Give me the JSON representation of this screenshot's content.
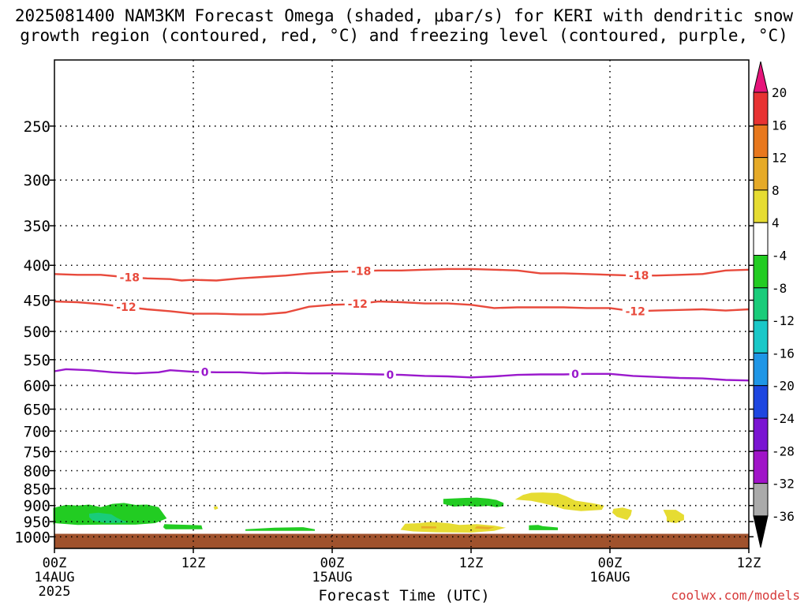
{
  "title_line1": "2025081400 NAM3KM Forecast Omega (shaded, μbar/s) for KERI with dendritic snow",
  "title_line2": "growth region (contoured, red, °C) and freezing level (contoured, purple, °C)",
  "watermark": "coolwx.com/models",
  "chart_data": {
    "type": "contour",
    "xlabel": "Forecast Time (UTC)",
    "x_ticks": [
      {
        "hours": 0,
        "label": "00Z",
        "sub1": "14AUG",
        "sub2": "2025"
      },
      {
        "hours": 12,
        "label": "12Z",
        "sub1": "",
        "sub2": ""
      },
      {
        "hours": 24,
        "label": "00Z",
        "sub1": "15AUG",
        "sub2": ""
      },
      {
        "hours": 36,
        "label": "12Z",
        "sub1": "",
        "sub2": ""
      },
      {
        "hours": 48,
        "label": "00Z",
        "sub1": "16AUG",
        "sub2": ""
      },
      {
        "hours": 60,
        "label": "12Z",
        "sub1": "",
        "sub2": ""
      }
    ],
    "x_range_hours": [
      0,
      60
    ],
    "y_axis": "pressure (hPa), inverted",
    "y_range": [
      1040,
      200
    ],
    "y_ticks": [
      250,
      300,
      350,
      400,
      450,
      500,
      550,
      600,
      650,
      700,
      750,
      800,
      850,
      900,
      950,
      1000
    ],
    "ground_pressure": 990,
    "ground_color": "#a0522d",
    "contours": [
      {
        "name": "-18",
        "color": "#e84a3c",
        "kind": "dgz",
        "points": [
          [
            0,
            412
          ],
          [
            2,
            413
          ],
          [
            4,
            413
          ],
          [
            6,
            416
          ],
          [
            8,
            418
          ],
          [
            10,
            419
          ],
          [
            11,
            421
          ],
          [
            12,
            420
          ],
          [
            14,
            421
          ],
          [
            16,
            418
          ],
          [
            18,
            416
          ],
          [
            20,
            414
          ],
          [
            22,
            411
          ],
          [
            24,
            409
          ],
          [
            26,
            408
          ],
          [
            28,
            407
          ],
          [
            30,
            407
          ],
          [
            32,
            406
          ],
          [
            34,
            405
          ],
          [
            36,
            405
          ],
          [
            38,
            406
          ],
          [
            40,
            407
          ],
          [
            42,
            411
          ],
          [
            44,
            411
          ],
          [
            46,
            412
          ],
          [
            48,
            413
          ],
          [
            50,
            414
          ],
          [
            52,
            414
          ],
          [
            54,
            413
          ],
          [
            56,
            412
          ],
          [
            58,
            407
          ],
          [
            60,
            406
          ]
        ],
        "labels": [
          6.5,
          26.5,
          50.5
        ]
      },
      {
        "name": "-12",
        "color": "#e84a3c",
        "kind": "dgz",
        "points": [
          [
            0,
            452
          ],
          [
            2,
            453
          ],
          [
            4,
            456
          ],
          [
            6,
            460
          ],
          [
            8,
            464
          ],
          [
            10,
            467
          ],
          [
            12,
            471
          ],
          [
            14,
            471
          ],
          [
            16,
            472
          ],
          [
            18,
            472
          ],
          [
            20,
            469
          ],
          [
            22,
            460
          ],
          [
            24,
            457
          ],
          [
            26,
            456
          ],
          [
            28,
            452
          ],
          [
            30,
            453
          ],
          [
            32,
            455
          ],
          [
            34,
            455
          ],
          [
            36,
            457
          ],
          [
            38,
            462
          ],
          [
            40,
            461
          ],
          [
            42,
            461
          ],
          [
            44,
            461
          ],
          [
            46,
            462
          ],
          [
            48,
            462
          ],
          [
            50,
            467
          ],
          [
            52,
            466
          ],
          [
            54,
            465
          ],
          [
            56,
            464
          ],
          [
            58,
            466
          ],
          [
            60,
            464
          ]
        ],
        "labels": [
          6.2,
          26.2,
          50.2
        ]
      },
      {
        "name": "0",
        "color": "#9a19cc",
        "kind": "freezing",
        "points": [
          [
            0,
            572
          ],
          [
            1,
            568
          ],
          [
            3,
            570
          ],
          [
            5,
            574
          ],
          [
            7,
            576
          ],
          [
            9,
            574
          ],
          [
            10,
            570
          ],
          [
            12,
            573
          ],
          [
            14,
            574
          ],
          [
            16,
            574
          ],
          [
            18,
            576
          ],
          [
            20,
            575
          ],
          [
            22,
            576
          ],
          [
            24,
            576
          ],
          [
            26,
            577
          ],
          [
            28,
            578
          ],
          [
            30,
            579
          ],
          [
            32,
            581
          ],
          [
            34,
            582
          ],
          [
            36,
            584
          ],
          [
            38,
            582
          ],
          [
            40,
            579
          ],
          [
            42,
            578
          ],
          [
            44,
            578
          ],
          [
            46,
            577
          ],
          [
            48,
            577
          ],
          [
            50,
            581
          ],
          [
            52,
            583
          ],
          [
            54,
            585
          ],
          [
            56,
            586
          ],
          [
            58,
            589
          ],
          [
            60,
            590
          ]
        ],
        "labels": [
          13,
          29,
          45
        ]
      }
    ],
    "shaded_regions": [
      {
        "range": "-8 to -4",
        "color": "#22cc22",
        "polygon": [
          [
            -0.1,
            907
          ],
          [
            1,
            898
          ],
          [
            2,
            900
          ],
          [
            3,
            897
          ],
          [
            4,
            905
          ],
          [
            5,
            895
          ],
          [
            6,
            892
          ],
          [
            7,
            898
          ],
          [
            8,
            897
          ],
          [
            9,
            905
          ],
          [
            9.7,
            940
          ],
          [
            8.7,
            955
          ],
          [
            7,
            960
          ],
          [
            4,
            960
          ],
          [
            2,
            961
          ],
          [
            0,
            955
          ],
          [
            -0.1,
            960
          ]
        ]
      },
      {
        "range": "-12 to -8",
        "color": "#19cc7a",
        "polygon": [
          [
            3,
            925
          ],
          [
            3.8,
            922
          ],
          [
            4.9,
            927
          ],
          [
            5.4,
            938
          ],
          [
            5.9,
            947
          ],
          [
            6.5,
            953
          ],
          [
            4.5,
            955
          ],
          [
            3.3,
            947
          ],
          [
            3,
            936
          ]
        ]
      },
      {
        "range": "-8 to -4",
        "color": "#22cc22",
        "polygon": [
          [
            9.5,
            958
          ],
          [
            12.7,
            962
          ],
          [
            12.8,
            975
          ],
          [
            9.6,
            975
          ],
          [
            9.4,
            968
          ]
        ]
      },
      {
        "range": "-8 to -4",
        "color": "#22cc22",
        "polygon": [
          [
            16.5,
            975
          ],
          [
            19,
            970
          ],
          [
            21.5,
            968
          ],
          [
            22.5,
            975
          ],
          [
            22.5,
            980
          ],
          [
            16.5,
            980
          ]
        ]
      },
      {
        "range": "-8 to -4",
        "color": "#22cc22",
        "polygon": [
          [
            33.6,
            880
          ],
          [
            35.5,
            877
          ],
          [
            36.5,
            876
          ],
          [
            37.5,
            879
          ],
          [
            38.2,
            883
          ],
          [
            38.8,
            892
          ],
          [
            38.8,
            902
          ],
          [
            38.2,
            905
          ],
          [
            37.5,
            901
          ],
          [
            36.5,
            903
          ],
          [
            35.5,
            901
          ],
          [
            34.5,
            903
          ],
          [
            33.6,
            895
          ]
        ]
      },
      {
        "range": "-8 to -4",
        "color": "#22cc22",
        "polygon": [
          [
            41,
            962
          ],
          [
            41.8,
            961
          ],
          [
            42.2,
            965
          ],
          [
            43.5,
            969
          ],
          [
            43.5,
            978
          ],
          [
            41,
            978
          ]
        ]
      },
      {
        "range": "4 to 8",
        "color": "#e6dc32",
        "polygon": [
          [
            30.3,
            957
          ],
          [
            31.5,
            955
          ],
          [
            32.5,
            951
          ],
          [
            34,
            955
          ],
          [
            35,
            961
          ],
          [
            36.5,
            958
          ],
          [
            38,
            963
          ],
          [
            39,
            970
          ],
          [
            38,
            980
          ],
          [
            36,
            986
          ],
          [
            33,
            985
          ],
          [
            31,
            982
          ],
          [
            29.9,
            977
          ]
        ]
      },
      {
        "range": "4 to 8",
        "color": "#e6dc32",
        "polygon": [
          [
            39.8,
            882
          ],
          [
            40.5,
            868
          ],
          [
            41.2,
            862
          ],
          [
            42.2,
            861
          ],
          [
            43.5,
            863
          ],
          [
            44.2,
            872
          ],
          [
            45,
            885
          ],
          [
            46.5,
            893
          ],
          [
            47.5,
            900
          ],
          [
            47.3,
            913
          ],
          [
            45.5,
            917
          ],
          [
            44,
            911
          ],
          [
            43.2,
            902
          ],
          [
            42.2,
            893
          ],
          [
            41.2,
            886
          ]
        ]
      },
      {
        "range": "4 to 8",
        "color": "#e6dc32",
        "polygon": [
          [
            48.3,
            910
          ],
          [
            49.1,
            906
          ],
          [
            49.9,
            914
          ],
          [
            49.8,
            930
          ],
          [
            49.5,
            945
          ],
          [
            48.6,
            935
          ],
          [
            48.2,
            922
          ]
        ]
      },
      {
        "range": "4 to 8",
        "color": "#e6dc32",
        "polygon": [
          [
            52.6,
            913
          ],
          [
            53.7,
            913
          ],
          [
            54.4,
            929
          ],
          [
            54.4,
            945
          ],
          [
            53.7,
            955
          ],
          [
            52.9,
            950
          ],
          [
            52.9,
            936
          ]
        ]
      },
      {
        "range": "4 to 8",
        "color": "#e6dc32",
        "polygon": [
          [
            13.75,
            904
          ],
          [
            14.05,
            902
          ],
          [
            14.15,
            909
          ],
          [
            13.85,
            913
          ]
        ]
      },
      {
        "range": "8 to 12",
        "color": "#e6aa28",
        "polygon": [
          [
            31.7,
            965
          ],
          [
            33,
            966
          ],
          [
            33,
            972
          ],
          [
            31.7,
            972
          ]
        ]
      },
      {
        "range": "8 to 12",
        "color": "#e6aa28",
        "polygon": [
          [
            36.5,
            965
          ],
          [
            38,
            968
          ],
          [
            37.5,
            975
          ],
          [
            36.3,
            972
          ]
        ]
      }
    ],
    "colorbar": {
      "levels": [
        20,
        16,
        12,
        8,
        4,
        -4,
        -8,
        -12,
        -16,
        -20,
        -24,
        -28,
        -32,
        -36
      ],
      "colors": [
        "#e0e0e0",
        "#e8467a",
        "#e83232",
        "#e8781e",
        "#e6aa28",
        "#e6dc32",
        "#ffffff",
        "#22cc22",
        "#19cc7a",
        "#19c8c8",
        "#1f96e6",
        "#1e46e0",
        "#7a14d2",
        "#a014c8",
        "#aaaaaa",
        "#000000"
      ],
      "top_color": "#e6147a",
      "bottom_color": "#000000",
      "segment_colors": [
        "#e83232",
        "#e8781e",
        "#e6aa28",
        "#e6dc32",
        "#ffffff",
        "#22cc22",
        "#19cc7a",
        "#19c8c8",
        "#1f96e6",
        "#1e46e0",
        "#7a14d2",
        "#a014c8",
        "#aaaaaa"
      ]
    }
  }
}
